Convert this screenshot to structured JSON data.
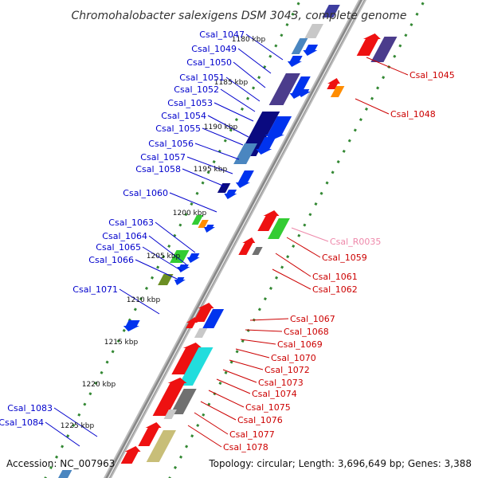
{
  "title": "Chromohalobacter salexigens DSM 3043, complete genome",
  "accession": "Accession: NC_007963",
  "topology": "Topology: circular; Length: 3,696,649 bp; Genes: 3,388",
  "colors": {
    "forward_label": "#0000cc",
    "reverse_label": "#cc0000",
    "rna_label": "#ee88aa",
    "backbone": "#888888",
    "ticks": "#338833"
  },
  "scale_ticks": [
    "1180 kbp",
    "1185 kbp",
    "1190 kbp",
    "1195 kbp",
    "1200 kbp",
    "1205 kbp",
    "1210 kbp",
    "1215 kbp",
    "1220 kbp",
    "1225 kbp"
  ],
  "left_labels": [
    "Csal_1047",
    "Csal_1049",
    "Csal_1050",
    "Csal_1051",
    "Csal_1052",
    "Csal_1053",
    "Csal_1054",
    "Csal_1055",
    "Csal_1056",
    "Csal_1057",
    "Csal_1058",
    "Csal_1060",
    "Csal_1063",
    "Csal_1064",
    "Csal_1065",
    "Csal_1066",
    "Csal_1071",
    "Csal_1083",
    "Csal_1084"
  ],
  "right_labels": [
    "Csal_1045",
    "Csal_1048",
    "Csal_R0035",
    "Csal_1059",
    "Csal_1061",
    "Csal_1062",
    "Csal_1067",
    "Csal_1068",
    "Csal_1069",
    "Csal_1070",
    "Csal_1072",
    "Csal_1073",
    "Csal_1074",
    "Csal_1075",
    "Csal_1076",
    "Csal_1077",
    "Csal_1078"
  ],
  "gene_colors": [
    "blue",
    "steelblue",
    "navy",
    "slateblue",
    "green",
    "orange",
    "olive",
    "red",
    "darkslateblue",
    "gray",
    "silver",
    "cyan",
    "khaki"
  ]
}
